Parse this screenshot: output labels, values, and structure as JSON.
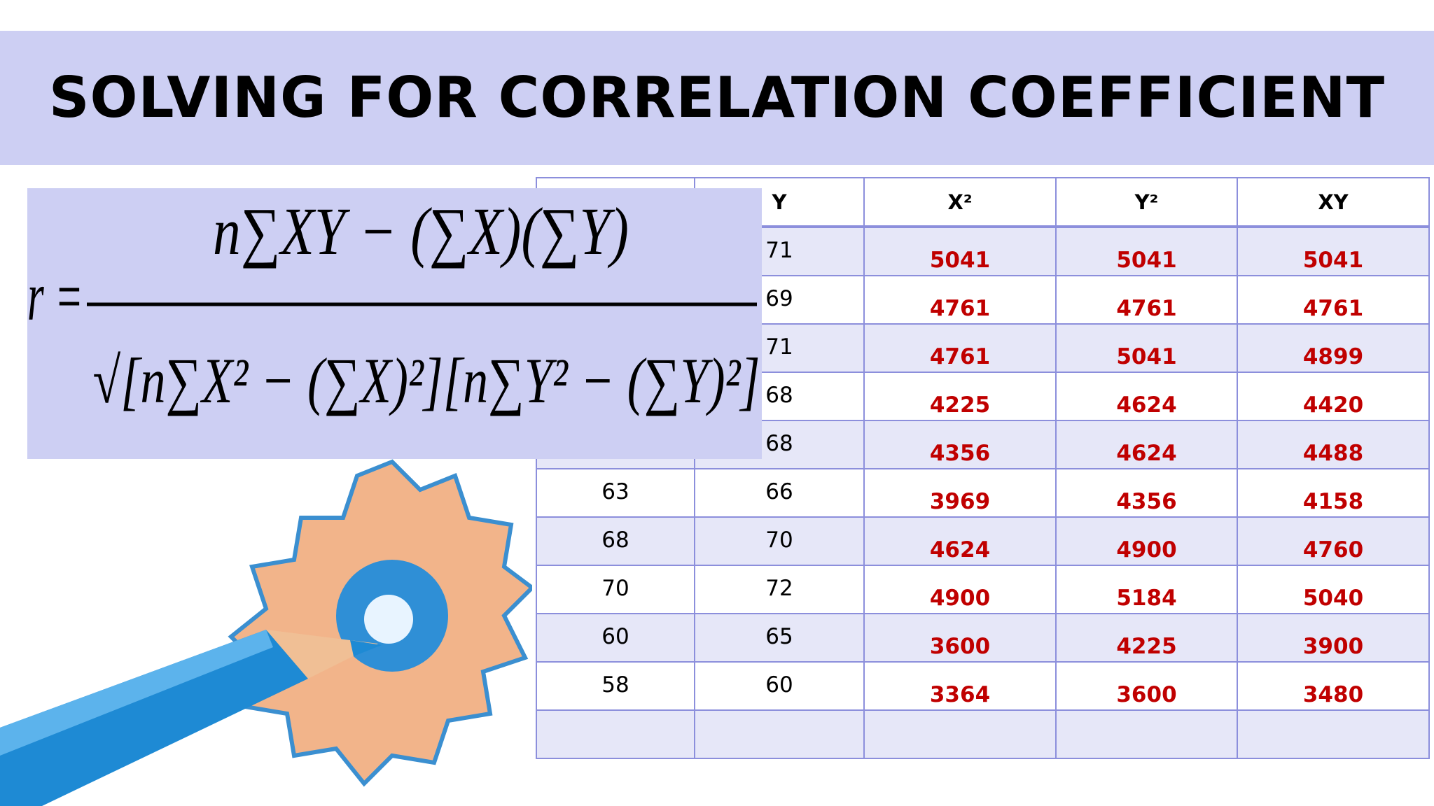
{
  "header": {
    "title": "SOLVING FOR CORRELATION COEFFICIENT"
  },
  "formula": {
    "lhs": "r =",
    "numerator": "n∑XY − (∑X)(∑Y)",
    "denominator": "√[n∑X² − (∑X)²][n∑Y² − (∑Y)²]"
  },
  "table": {
    "headers": [
      "Y",
      "X²",
      "Y²",
      "XY"
    ],
    "rows": [
      {
        "y": 71,
        "x2": 5041,
        "y2": 5041,
        "xy": 5041
      },
      {
        "y": 69,
        "x2": 4761,
        "y2": 4761,
        "xy": 4761
      },
      {
        "y": 71,
        "x2": 4761,
        "y2": 5041,
        "xy": 4899
      },
      {
        "y": 68,
        "x2": 4225,
        "y2": 4624,
        "xy": 4420
      },
      {
        "y": 68,
        "x2": 4356,
        "y2": 4624,
        "xy": 4488
      },
      {
        "x": 63,
        "y": 66,
        "x2": 3969,
        "y2": 4356,
        "xy": 4158
      },
      {
        "x": 68,
        "y": 70,
        "x2": 4624,
        "y2": 4900,
        "xy": 4760
      },
      {
        "x": 70,
        "y": 72,
        "x2": 4900,
        "y2": 5184,
        "xy": 5040
      },
      {
        "x": 60,
        "y": 65,
        "x2": 3600,
        "y2": 4225,
        "xy": 3900
      },
      {
        "x": 58,
        "y": 60,
        "x2": 3364,
        "y2": 3600,
        "xy": 3480
      }
    ]
  }
}
